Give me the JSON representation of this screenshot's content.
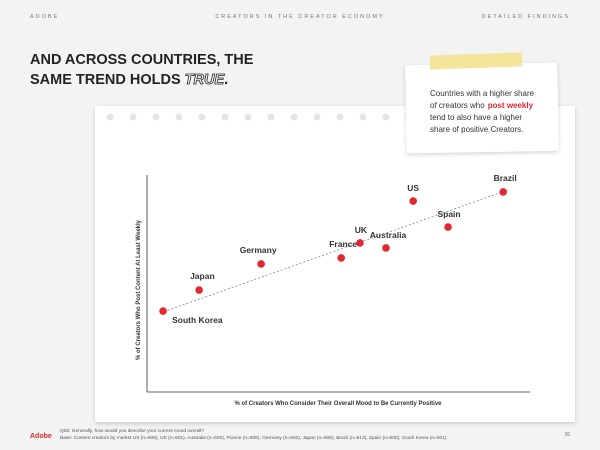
{
  "header": {
    "brand": "ADOBE",
    "section": "CREATORS IN THE CREATOR ECONOMY",
    "chapter": "DETAILED FINDINGS"
  },
  "title": {
    "line1": "AND ACROSS COUNTRIES, THE",
    "line2_prefix": "SAME TREND HOLDS",
    "line2_emphasis": "TRUE",
    "line2_suffix": "."
  },
  "note": {
    "line1": "Countries with a higher share",
    "line2_before": "of creators who",
    "line2_highlight": "post weekly",
    "line3": "tend to also have a higher",
    "line4": "share of positive Creators."
  },
  "chart_data": {
    "type": "scatter",
    "x_label": "% of Creators Who Consider Their Overall Mood to Be Currently Positive",
    "y_label": "% of Creators Who Post Content At Least Weekly",
    "categories": [
      "South Korea",
      "Japan",
      "Germany",
      "France",
      "UK",
      "Australia",
      "US",
      "Spain",
      "Brazil"
    ],
    "x": [
      4.2,
      13.6,
      29.8,
      50.7,
      55.6,
      62.4,
      69.5,
      78.6,
      93
    ],
    "values": [
      37.3,
      47,
      59,
      61.8,
      68.7,
      66.4,
      88,
      76,
      92.2
    ],
    "color": "#e0282e",
    "xlim": [
      0,
      100
    ],
    "ylim": [
      0,
      100
    ]
  },
  "footer": {
    "logo": "Adobe",
    "question": "Q26: Generally, how would you describe your current mood overall?",
    "base": "Base: Content creators by market US (n=508), UK (n=501), Australia (n=500), France (n=506), Germany (n=500), Japan (n=506), Brazil (n=513), Spain (n=500), South Korea (n=501)",
    "page": "36"
  }
}
